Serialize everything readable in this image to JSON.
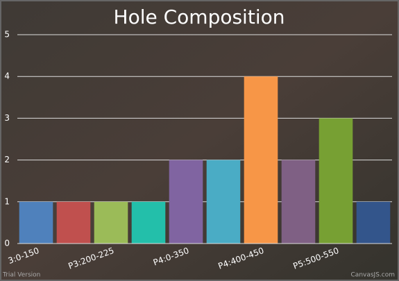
{
  "chart_data": {
    "type": "bar",
    "title": "Hole Composition",
    "categories": [
      "3:0-150",
      null,
      "P3:200-225",
      null,
      "P4:0-350",
      null,
      "P4:400-450",
      null,
      "P5:500-550",
      null
    ],
    "values": [
      1,
      1,
      1,
      1,
      2,
      2,
      4,
      2,
      3,
      1
    ],
    "colors": [
      "#4f81bc",
      "#c0504e",
      "#9bbb58",
      "#23bfaa",
      "#8064a1",
      "#4aacc5",
      "#f79647",
      "#7f6084",
      "#77a033",
      "#33558b"
    ],
    "ylim": [
      0,
      5
    ],
    "yticks": [
      0,
      1,
      2,
      3,
      4,
      5
    ],
    "grid": true,
    "watermarks": [
      "Trial Version",
      "CanvasJS.com"
    ]
  }
}
